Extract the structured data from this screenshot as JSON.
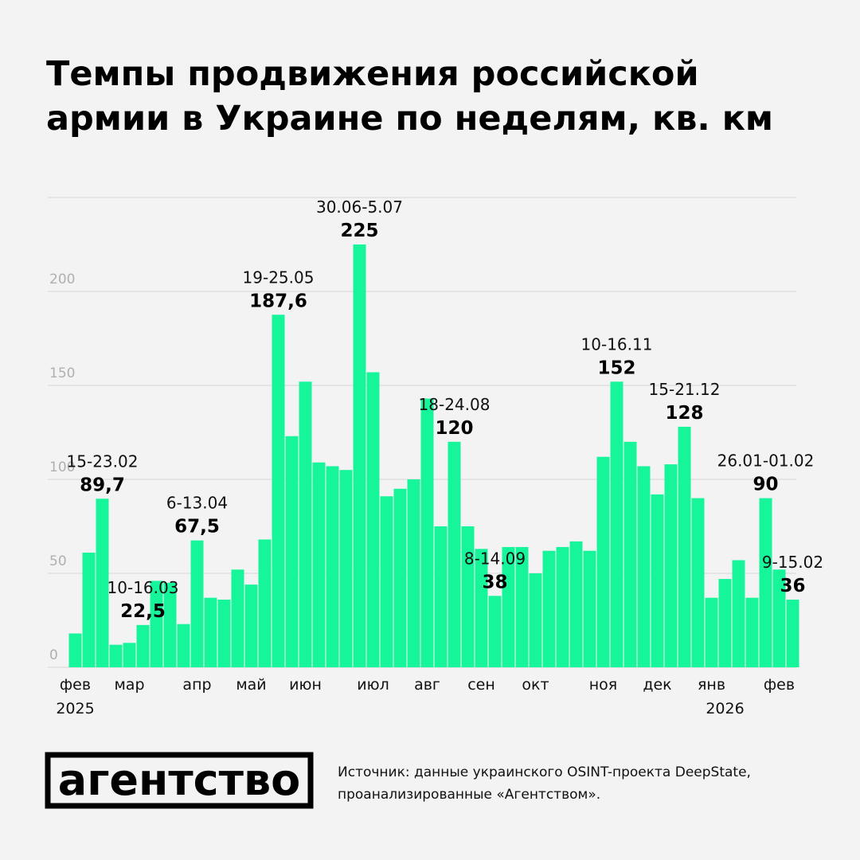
{
  "chart_data": {
    "type": "bar",
    "title": [
      "Темпы продвижения российской",
      "армии в Украине по неделям, кв. км"
    ],
    "categories": [
      "фев",
      null,
      null,
      null,
      "мар",
      null,
      null,
      null,
      null,
      "апр",
      null,
      null,
      null,
      "май",
      null,
      null,
      null,
      "июн",
      null,
      null,
      null,
      null,
      "июл",
      null,
      null,
      null,
      "авг",
      null,
      null,
      null,
      "сен",
      null,
      null,
      null,
      "окт",
      null,
      null,
      null,
      null,
      "ноя",
      null,
      null,
      null,
      "дек",
      null,
      null,
      null,
      "янв",
      null,
      null,
      null,
      null,
      "фев",
      null
    ],
    "years": [
      "2025",
      "2026"
    ],
    "values": [
      18,
      61,
      89.7,
      12,
      13,
      22.5,
      46,
      45,
      23,
      67.5,
      37,
      36,
      52,
      44,
      68,
      187.6,
      123,
      152,
      109,
      107,
      105,
      225,
      157,
      91,
      95,
      100,
      143,
      75,
      120,
      75,
      63,
      38,
      64,
      64,
      50,
      62,
      64,
      67,
      62,
      112,
      152,
      120,
      107,
      92,
      108,
      128,
      90,
      37,
      47,
      57,
      37,
      90,
      52,
      36
    ],
    "value_labels": [
      null,
      null,
      "89,7",
      null,
      null,
      "22,5",
      null,
      null,
      null,
      "67,5",
      null,
      null,
      null,
      null,
      null,
      "187,6",
      null,
      null,
      null,
      null,
      null,
      "225",
      null,
      null,
      null,
      null,
      null,
      null,
      "120",
      null,
      null,
      "38",
      null,
      null,
      null,
      null,
      null,
      null,
      null,
      null,
      "152",
      null,
      null,
      null,
      null,
      "128",
      null,
      null,
      null,
      null,
      null,
      "90",
      null,
      "36"
    ],
    "date_labels": [
      null,
      null,
      "15-23.02",
      null,
      null,
      "10-16.03",
      null,
      null,
      null,
      "6-13.04",
      null,
      null,
      null,
      null,
      null,
      "19-25.05",
      null,
      null,
      null,
      null,
      null,
      "30.06-5.07",
      null,
      null,
      null,
      null,
      null,
      null,
      "18-24.08",
      null,
      null,
      "8-14.09",
      null,
      null,
      null,
      null,
      null,
      null,
      null,
      null,
      "10-16.11",
      null,
      null,
      null,
      null,
      "15-21.12",
      null,
      null,
      null,
      null,
      null,
      "26.01-01.02",
      null,
      "9-15.02"
    ],
    "color": "#17f59a",
    "ylim": [
      0,
      250
    ],
    "yticks": [
      0,
      50,
      100,
      150,
      200
    ],
    "grid": true
  },
  "source": [
    "Источник: данные украинского OSINT-проекта DeepState,",
    "проанализированные «Агентством»."
  ],
  "logo": "агентство"
}
